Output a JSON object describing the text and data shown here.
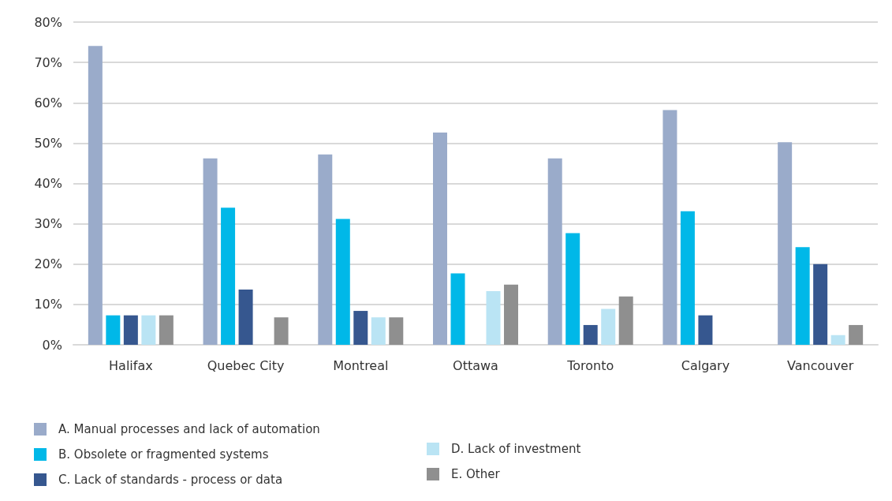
{
  "chart_data": {
    "type": "bar",
    "categories": [
      "Halifax",
      "Quebec City",
      "Montreal",
      "Ottawa",
      "Toronto",
      "Calgary",
      "Vancouver"
    ],
    "series": [
      {
        "name": "A. Manual processes and lack of automation",
        "color": "#9aabca",
        "values": [
          74.1,
          46.2,
          47.2,
          52.6,
          46.2,
          58.2,
          50.2
        ]
      },
      {
        "name": "B. Obsolete or fragmented systems",
        "color": "#00b8e8",
        "values": [
          7.3,
          34,
          31.2,
          17.7,
          27.7,
          33.1,
          24.2
        ]
      },
      {
        "name": "C. Lack of standards - process or data",
        "color": "#36578f",
        "values": [
          7.3,
          13.7,
          8.4,
          null,
          4.9,
          7.3,
          20
        ]
      },
      {
        "name": "D. Lack of investment",
        "color": "#bae4f4",
        "values": [
          7.3,
          null,
          6.8,
          13.3,
          8.9,
          null,
          2.4
        ]
      },
      {
        "name": "E. Other",
        "color": "#8f8f8f",
        "values": [
          7.3,
          6.8,
          6.8,
          14.9,
          12,
          null,
          4.9
        ]
      }
    ],
    "ylim": [
      0,
      80
    ],
    "yticks": [
      {
        "value": 0,
        "label": "0%"
      },
      {
        "value": 10,
        "label": "10%"
      },
      {
        "value": 20,
        "label": "20%"
      },
      {
        "value": 30,
        "label": "30%"
      },
      {
        "value": 40,
        "label": "40%"
      },
      {
        "value": 50,
        "label": "50%"
      },
      {
        "value": 60,
        "label": "60%"
      },
      {
        "value": 70,
        "label": "70%"
      },
      {
        "value": 80,
        "label": "80%"
      }
    ],
    "grid": "y",
    "legend": "bottom"
  }
}
